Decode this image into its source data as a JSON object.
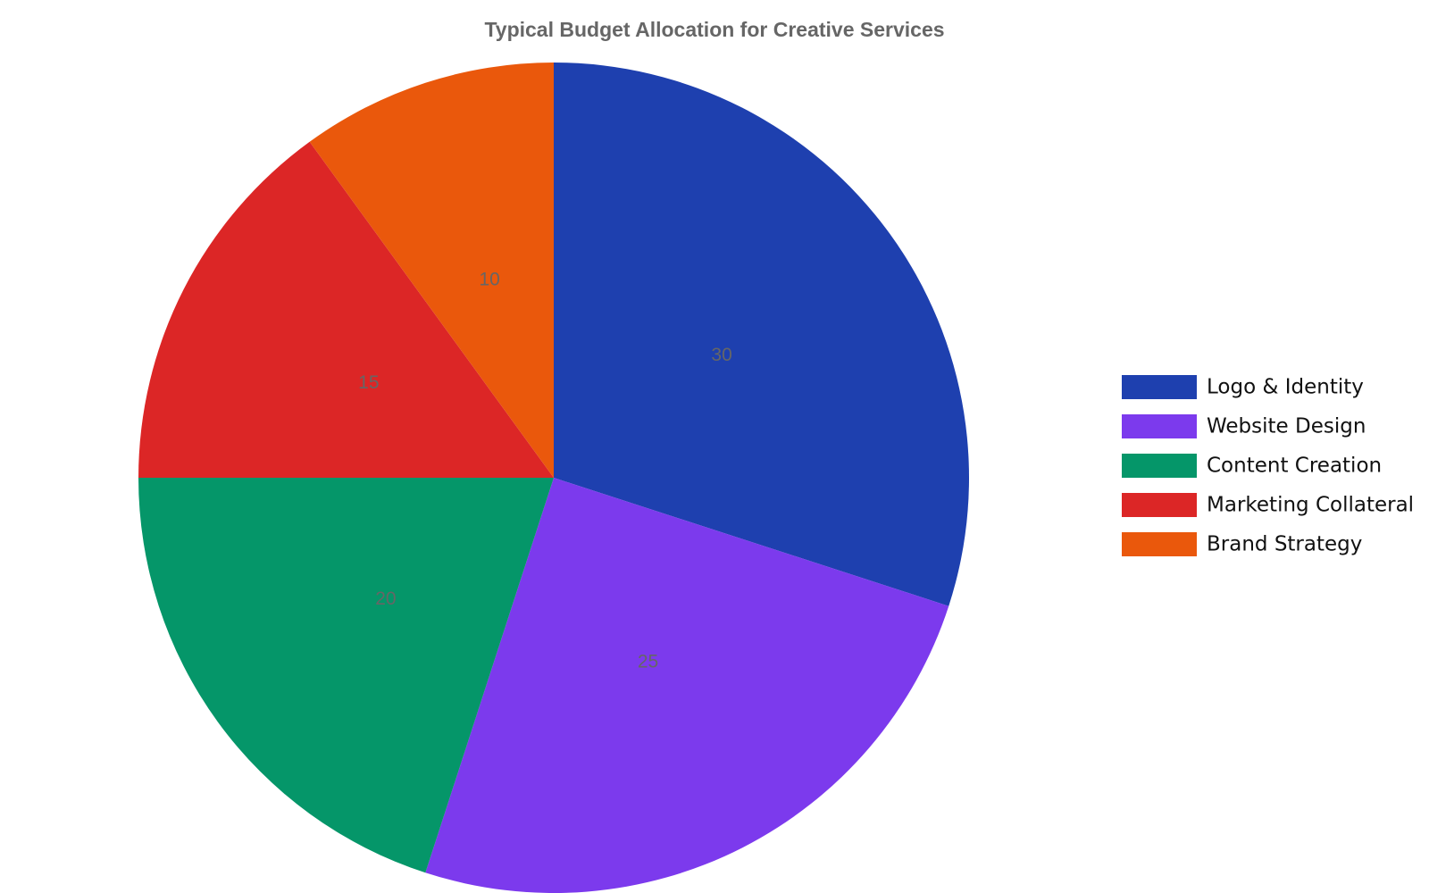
{
  "chart_data": {
    "type": "pie",
    "title": "Typical Budget Allocation for Creative Services",
    "categories": [
      "Logo & Identity",
      "Website Design",
      "Content Creation",
      "Marketing Collateral",
      "Brand Strategy"
    ],
    "values": [
      30,
      25,
      20,
      15,
      10
    ],
    "colors": [
      "#1e40af",
      "#7c3aed",
      "#059669",
      "#dc2626",
      "#ea580c"
    ],
    "legend": "right"
  }
}
